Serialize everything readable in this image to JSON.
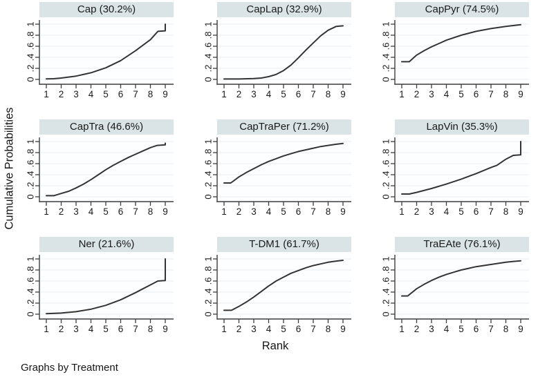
{
  "labels": {
    "ylabel": "Cumulative Probabilities",
    "xlabel": "Rank",
    "caption": "Graphs by Treatment"
  },
  "colors": {
    "curve": "#333333",
    "axis": "#3c3c3c",
    "grid": "#e6eef1",
    "strip_bg": "#dae4e7",
    "text": "#1a1a1a",
    "plot_bg": "#fdfeff"
  },
  "chart_data": {
    "type": "line",
    "layout": "3x3 small multiples, shared axes",
    "xlabel": "Rank",
    "ylabel": "Cumulative Probabilities",
    "caption": "Graphs by Treatment",
    "x_ticks": [
      "1",
      "2",
      "3",
      "4",
      "5",
      "6",
      "7",
      "8",
      "9"
    ],
    "x_tick_values": [
      1,
      2,
      3,
      4,
      5,
      6,
      7,
      8,
      9
    ],
    "y_ticks": [
      "0",
      ".2",
      ".4",
      ".6",
      ".8",
      "1"
    ],
    "y_tick_values": [
      0,
      0.2,
      0.4,
      0.6,
      0.8,
      1
    ],
    "ylim": [
      0,
      1
    ],
    "xlim": [
      0.55,
      9.55
    ],
    "grid": "horizontal gridlines at each y tick",
    "legend": "none",
    "panels": [
      {
        "title": "Cap (30.2%)",
        "treatment": "Cap",
        "value_pct": 30.2,
        "points": [
          [
            1,
            0.01
          ],
          [
            1.5,
            0.012
          ],
          [
            2,
            0.025
          ],
          [
            3,
            0.06
          ],
          [
            4,
            0.12
          ],
          [
            5,
            0.21
          ],
          [
            6,
            0.34
          ],
          [
            7,
            0.52
          ],
          [
            8,
            0.72
          ],
          [
            8.5,
            0.87
          ],
          [
            9,
            0.88
          ],
          [
            9,
            1.0
          ]
        ]
      },
      {
        "title": "CapLap (32.9%)",
        "treatment": "CapLap",
        "value_pct": 32.9,
        "points": [
          [
            1,
            0.008
          ],
          [
            2,
            0.008
          ],
          [
            3,
            0.015
          ],
          [
            3.5,
            0.025
          ],
          [
            4,
            0.05
          ],
          [
            4.5,
            0.09
          ],
          [
            5,
            0.16
          ],
          [
            5.5,
            0.26
          ],
          [
            6,
            0.39
          ],
          [
            6.5,
            0.53
          ],
          [
            7,
            0.66
          ],
          [
            7.5,
            0.79
          ],
          [
            8,
            0.89
          ],
          [
            8.55,
            0.96
          ],
          [
            9,
            0.97
          ]
        ]
      },
      {
        "title": "CapPyr (74.5%)",
        "treatment": "CapPyr",
        "value_pct": 74.5,
        "points": [
          [
            1,
            0.32
          ],
          [
            1.5,
            0.32
          ],
          [
            2,
            0.44
          ],
          [
            2.5,
            0.52
          ],
          [
            3,
            0.59
          ],
          [
            3.5,
            0.65
          ],
          [
            4,
            0.71
          ],
          [
            5,
            0.8
          ],
          [
            6,
            0.87
          ],
          [
            7,
            0.92
          ],
          [
            8,
            0.96
          ],
          [
            9,
            0.99
          ]
        ]
      },
      {
        "title": "CapTra (46.6%)",
        "treatment": "CapTra",
        "value_pct": 46.6,
        "points": [
          [
            1,
            0.02
          ],
          [
            1.5,
            0.02
          ],
          [
            2,
            0.06
          ],
          [
            2.5,
            0.1
          ],
          [
            3,
            0.16
          ],
          [
            3.5,
            0.23
          ],
          [
            4,
            0.31
          ],
          [
            4.5,
            0.4
          ],
          [
            5,
            0.49
          ],
          [
            5.5,
            0.57
          ],
          [
            6,
            0.64
          ],
          [
            6.5,
            0.71
          ],
          [
            7,
            0.77
          ],
          [
            7.5,
            0.83
          ],
          [
            8,
            0.89
          ],
          [
            8.45,
            0.93
          ],
          [
            9,
            0.94
          ],
          [
            9,
            0.97
          ]
        ]
      },
      {
        "title": "CapTraPer (71.2%)",
        "treatment": "CapTraPer",
        "value_pct": 71.2,
        "points": [
          [
            1,
            0.25
          ],
          [
            1.45,
            0.25
          ],
          [
            2,
            0.36
          ],
          [
            2.5,
            0.44
          ],
          [
            3,
            0.51
          ],
          [
            3.5,
            0.58
          ],
          [
            4,
            0.64
          ],
          [
            4.5,
            0.69
          ],
          [
            5,
            0.74
          ],
          [
            5.5,
            0.78
          ],
          [
            6,
            0.82
          ],
          [
            6.5,
            0.85
          ],
          [
            7,
            0.88
          ],
          [
            7.5,
            0.91
          ],
          [
            8,
            0.93
          ],
          [
            8.5,
            0.95
          ],
          [
            9,
            0.965
          ]
        ]
      },
      {
        "title": "LapVin (35.3%)",
        "treatment": "LapVin",
        "value_pct": 35.3,
        "points": [
          [
            1,
            0.05
          ],
          [
            1.5,
            0.05
          ],
          [
            2,
            0.08
          ],
          [
            3,
            0.15
          ],
          [
            4,
            0.23
          ],
          [
            5,
            0.32
          ],
          [
            6,
            0.42
          ],
          [
            7,
            0.53
          ],
          [
            7.4,
            0.57
          ],
          [
            8,
            0.68
          ],
          [
            8.5,
            0.75
          ],
          [
            9,
            0.76
          ],
          [
            9,
            1.0
          ]
        ]
      },
      {
        "title": "Ner (21.6%)",
        "treatment": "Ner",
        "value_pct": 21.6,
        "points": [
          [
            1,
            0.01
          ],
          [
            2,
            0.02
          ],
          [
            3,
            0.045
          ],
          [
            4,
            0.09
          ],
          [
            5,
            0.16
          ],
          [
            6,
            0.26
          ],
          [
            7,
            0.39
          ],
          [
            7.5,
            0.46
          ],
          [
            8,
            0.53
          ],
          [
            8.5,
            0.6
          ],
          [
            9,
            0.61
          ],
          [
            9,
            1.0
          ]
        ]
      },
      {
        "title": "T-DM1 (61.7%)",
        "treatment": "T-DM1",
        "value_pct": 61.7,
        "points": [
          [
            1,
            0.07
          ],
          [
            1.5,
            0.07
          ],
          [
            2,
            0.14
          ],
          [
            2.5,
            0.22
          ],
          [
            3,
            0.31
          ],
          [
            3.5,
            0.41
          ],
          [
            4,
            0.51
          ],
          [
            4.5,
            0.6
          ],
          [
            5,
            0.67
          ],
          [
            5.5,
            0.74
          ],
          [
            6,
            0.79
          ],
          [
            6.5,
            0.84
          ],
          [
            7,
            0.88
          ],
          [
            7.5,
            0.91
          ],
          [
            8,
            0.94
          ],
          [
            8.5,
            0.96
          ],
          [
            9,
            0.975
          ]
        ]
      },
      {
        "title": "TraEAte (76.1%)",
        "treatment": "TraEAte",
        "value_pct": 76.1,
        "points": [
          [
            1,
            0.33
          ],
          [
            1.4,
            0.33
          ],
          [
            2,
            0.46
          ],
          [
            2.5,
            0.54
          ],
          [
            3,
            0.61
          ],
          [
            3.5,
            0.67
          ],
          [
            4,
            0.72
          ],
          [
            4.5,
            0.76
          ],
          [
            5,
            0.8
          ],
          [
            5.5,
            0.83
          ],
          [
            6,
            0.86
          ],
          [
            6.5,
            0.88
          ],
          [
            7,
            0.9
          ],
          [
            7.5,
            0.92
          ],
          [
            8,
            0.94
          ],
          [
            8.5,
            0.955
          ],
          [
            9,
            0.965
          ]
        ]
      }
    ]
  }
}
